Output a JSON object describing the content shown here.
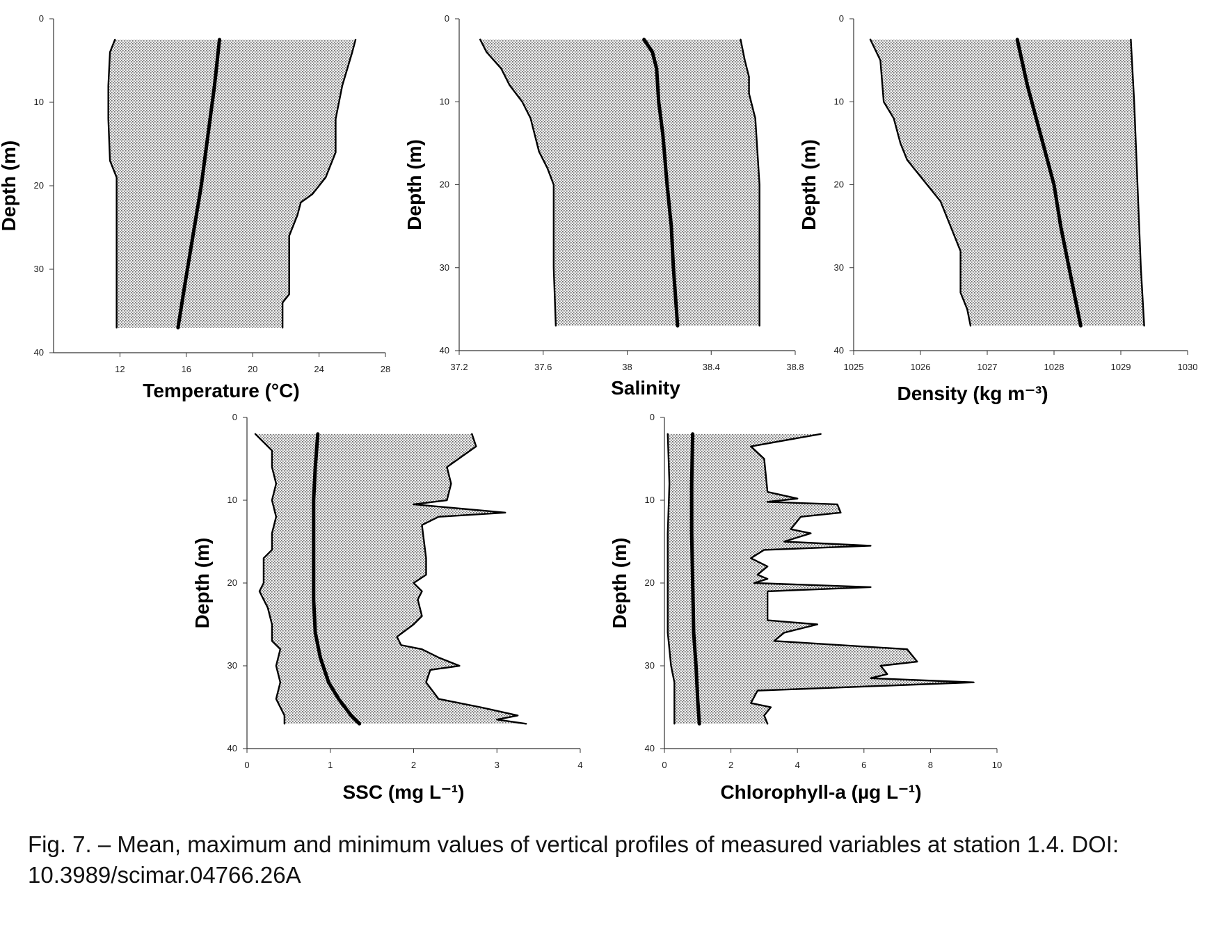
{
  "caption": "Fig. 7. – Mean, maximum and minimum values of vertical profiles of measured variables at station 1.4. DOI: 10.3989/scimar.04766.26A",
  "colors": {
    "fill": "#d4d4d4",
    "line": "#000000"
  },
  "chart_data": [
    {
      "type": "line",
      "title": "",
      "xlabel": "Temperature (°C)",
      "ylabel": "Depth (m)",
      "xlim": [
        8,
        28
      ],
      "ylim": [
        40,
        0
      ],
      "x_ticks": [
        "12",
        "16",
        "20",
        "24",
        "28"
      ],
      "y_ticks": [
        "0",
        "10",
        "20",
        "30",
        "40"
      ],
      "grid": false,
      "series": [
        {
          "role": "min",
          "points": [
            [
              11.7,
              2.5
            ],
            [
              11.4,
              4
            ],
            [
              11.3,
              8
            ],
            [
              11.3,
              12
            ],
            [
              11.4,
              17
            ],
            [
              11.8,
              19
            ],
            [
              11.8,
              25
            ],
            [
              11.8,
              30
            ],
            [
              11.8,
              37
            ]
          ]
        },
        {
          "role": "mean",
          "points": [
            [
              18.0,
              2.5
            ],
            [
              17.7,
              8
            ],
            [
              17.3,
              14
            ],
            [
              16.9,
              20
            ],
            [
              16.4,
              26
            ],
            [
              15.9,
              32
            ],
            [
              15.5,
              37
            ]
          ]
        },
        {
          "role": "max",
          "points": [
            [
              26.2,
              2.5
            ],
            [
              26.0,
              4
            ],
            [
              25.4,
              8
            ],
            [
              25.0,
              12
            ],
            [
              25.0,
              16
            ],
            [
              24.4,
              19
            ],
            [
              23.6,
              21
            ],
            [
              22.9,
              22
            ],
            [
              22.7,
              23.5
            ],
            [
              22.2,
              26
            ],
            [
              22.2,
              33
            ],
            [
              21.8,
              34
            ],
            [
              21.8,
              37
            ]
          ]
        }
      ]
    },
    {
      "type": "line",
      "title": "",
      "xlabel": "Salinity",
      "ylabel": "Depth (m)",
      "xlim": [
        37.2,
        38.8
      ],
      "ylim": [
        40,
        0
      ],
      "x_ticks": [
        "37.2",
        "37.6",
        "38",
        "38.4",
        "38.8"
      ],
      "y_ticks": [
        "0",
        "10",
        "20",
        "30",
        "40"
      ],
      "grid": false,
      "series": [
        {
          "role": "min",
          "points": [
            [
              37.3,
              2.5
            ],
            [
              37.33,
              4
            ],
            [
              37.4,
              6
            ],
            [
              37.44,
              8
            ],
            [
              37.5,
              10
            ],
            [
              37.54,
              12
            ],
            [
              37.56,
              14
            ],
            [
              37.58,
              16
            ],
            [
              37.62,
              18
            ],
            [
              37.65,
              20
            ],
            [
              37.65,
              30
            ],
            [
              37.66,
              37
            ]
          ]
        },
        {
          "role": "mean",
          "points": [
            [
              38.08,
              2.5
            ],
            [
              38.12,
              4
            ],
            [
              38.14,
              6
            ],
            [
              38.15,
              10
            ],
            [
              38.17,
              14
            ],
            [
              38.19,
              20
            ],
            [
              38.21,
              25
            ],
            [
              38.22,
              30
            ],
            [
              38.24,
              37
            ]
          ]
        },
        {
          "role": "max",
          "points": [
            [
              38.54,
              2.5
            ],
            [
              38.56,
              5
            ],
            [
              38.58,
              7
            ],
            [
              38.58,
              9
            ],
            [
              38.61,
              12
            ],
            [
              38.62,
              16
            ],
            [
              38.63,
              20
            ],
            [
              38.63,
              30
            ],
            [
              38.63,
              37
            ]
          ]
        }
      ]
    },
    {
      "type": "line",
      "title": "",
      "xlabel": "Density (kg m⁻³)",
      "ylabel": "Depth (m)",
      "xlim": [
        1025,
        1030
      ],
      "ylim": [
        40,
        0
      ],
      "x_ticks": [
        "1025",
        "1026",
        "1027",
        "1028",
        "1029",
        "1030"
      ],
      "y_ticks": [
        "0",
        "10",
        "20",
        "30",
        "40"
      ],
      "grid": false,
      "series": [
        {
          "role": "min",
          "points": [
            [
              1025.25,
              2.5
            ],
            [
              1025.4,
              5
            ],
            [
              1025.45,
              10
            ],
            [
              1025.6,
              12
            ],
            [
              1025.7,
              15
            ],
            [
              1025.8,
              17
            ],
            [
              1026.0,
              19
            ],
            [
              1026.3,
              22
            ],
            [
              1026.5,
              26
            ],
            [
              1026.6,
              28
            ],
            [
              1026.6,
              33
            ],
            [
              1026.7,
              35
            ],
            [
              1026.75,
              37
            ]
          ]
        },
        {
          "role": "mean",
          "points": [
            [
              1027.45,
              2.5
            ],
            [
              1027.6,
              8
            ],
            [
              1027.8,
              14
            ],
            [
              1028.0,
              20
            ],
            [
              1028.1,
              25
            ],
            [
              1028.25,
              31
            ],
            [
              1028.4,
              37
            ]
          ]
        },
        {
          "role": "max",
          "points": [
            [
              1029.15,
              2.5
            ],
            [
              1029.2,
              10
            ],
            [
              1029.25,
              20
            ],
            [
              1029.3,
              30
            ],
            [
              1029.35,
              37
            ]
          ]
        }
      ]
    },
    {
      "type": "line",
      "title": "",
      "xlabel": "SSC (mg L⁻¹)",
      "ylabel": "Depth (m)",
      "xlim": [
        0,
        4
      ],
      "ylim": [
        40,
        0
      ],
      "x_ticks": [
        "0",
        "1",
        "2",
        "3",
        "4"
      ],
      "y_ticks": [
        "0",
        "10",
        "20",
        "30",
        "40"
      ],
      "grid": false,
      "series": [
        {
          "role": "min",
          "points": [
            [
              0.1,
              2
            ],
            [
              0.2,
              3
            ],
            [
              0.3,
              4
            ],
            [
              0.3,
              6
            ],
            [
              0.35,
              8
            ],
            [
              0.3,
              10
            ],
            [
              0.35,
              12
            ],
            [
              0.3,
              14
            ],
            [
              0.3,
              16
            ],
            [
              0.2,
              17
            ],
            [
              0.2,
              20
            ],
            [
              0.15,
              21
            ],
            [
              0.25,
              23
            ],
            [
              0.3,
              25
            ],
            [
              0.3,
              27
            ],
            [
              0.4,
              28
            ],
            [
              0.35,
              30
            ],
            [
              0.4,
              32
            ],
            [
              0.35,
              34
            ],
            [
              0.45,
              36
            ],
            [
              0.45,
              37
            ]
          ]
        },
        {
          "role": "mean",
          "points": [
            [
              0.85,
              2
            ],
            [
              0.82,
              6
            ],
            [
              0.8,
              10
            ],
            [
              0.8,
              16
            ],
            [
              0.8,
              22
            ],
            [
              0.82,
              26
            ],
            [
              0.88,
              29
            ],
            [
              0.98,
              32
            ],
            [
              1.1,
              34
            ],
            [
              1.25,
              36
            ],
            [
              1.35,
              37
            ]
          ]
        },
        {
          "role": "max",
          "points": [
            [
              2.7,
              2
            ],
            [
              2.75,
              3.5
            ],
            [
              2.4,
              6
            ],
            [
              2.45,
              8
            ],
            [
              2.4,
              10
            ],
            [
              2.0,
              10.5
            ],
            [
              3.1,
              11.5
            ],
            [
              2.3,
              12
            ],
            [
              2.1,
              13
            ],
            [
              2.15,
              17
            ],
            [
              2.15,
              19
            ],
            [
              2.0,
              20
            ],
            [
              2.1,
              21
            ],
            [
              2.05,
              22
            ],
            [
              2.1,
              24
            ],
            [
              2.0,
              25
            ],
            [
              1.8,
              26.5
            ],
            [
              1.85,
              27.5
            ],
            [
              2.1,
              28
            ],
            [
              2.3,
              29
            ],
            [
              2.55,
              30
            ],
            [
              2.2,
              30.5
            ],
            [
              2.15,
              32
            ],
            [
              2.3,
              34
            ],
            [
              2.8,
              35
            ],
            [
              3.25,
              36
            ],
            [
              3.0,
              36.5
            ],
            [
              3.35,
              37
            ]
          ]
        }
      ]
    },
    {
      "type": "line",
      "title": "",
      "xlabel": "Chlorophyll-a (µg L⁻¹)",
      "ylabel": "Depth (m)",
      "xlim": [
        0,
        10
      ],
      "ylim": [
        40,
        0
      ],
      "x_ticks": [
        "0",
        "2",
        "4",
        "6",
        "8",
        "10"
      ],
      "y_ticks": [
        "0",
        "10",
        "20",
        "30",
        "40"
      ],
      "grid": false,
      "series": [
        {
          "role": "min",
          "points": [
            [
              0.1,
              2
            ],
            [
              0.15,
              8
            ],
            [
              0.1,
              14
            ],
            [
              0.1,
              20
            ],
            [
              0.1,
              26
            ],
            [
              0.2,
              30
            ],
            [
              0.3,
              32
            ],
            [
              0.3,
              35
            ],
            [
              0.3,
              37
            ]
          ]
        },
        {
          "role": "mean",
          "points": [
            [
              0.85,
              2
            ],
            [
              0.82,
              8
            ],
            [
              0.82,
              14
            ],
            [
              0.85,
              20
            ],
            [
              0.88,
              26
            ],
            [
              0.95,
              30
            ],
            [
              1.0,
              34
            ],
            [
              1.05,
              37
            ]
          ]
        },
        {
          "role": "max",
          "points": [
            [
              4.7,
              2
            ],
            [
              2.6,
              3.5
            ],
            [
              3.0,
              5
            ],
            [
              3.1,
              9
            ],
            [
              4.0,
              9.8
            ],
            [
              3.1,
              10.2
            ],
            [
              5.2,
              10.5
            ],
            [
              5.3,
              11.5
            ],
            [
              4.1,
              12
            ],
            [
              3.8,
              13.5
            ],
            [
              4.4,
              14
            ],
            [
              3.6,
              15
            ],
            [
              6.2,
              15.5
            ],
            [
              3.0,
              16
            ],
            [
              2.6,
              17
            ],
            [
              3.1,
              18
            ],
            [
              2.8,
              19
            ],
            [
              3.1,
              19.5
            ],
            [
              2.7,
              20
            ],
            [
              6.2,
              20.5
            ],
            [
              3.1,
              21
            ],
            [
              3.1,
              23
            ],
            [
              3.1,
              24.5
            ],
            [
              4.6,
              25
            ],
            [
              3.6,
              26
            ],
            [
              3.3,
              27
            ],
            [
              7.3,
              28
            ],
            [
              7.6,
              29.5
            ],
            [
              6.5,
              30
            ],
            [
              6.7,
              31
            ],
            [
              6.2,
              31.5
            ],
            [
              9.3,
              32
            ],
            [
              2.8,
              33
            ],
            [
              2.6,
              34.5
            ],
            [
              3.2,
              35
            ],
            [
              3.0,
              36
            ],
            [
              3.1,
              37
            ]
          ]
        }
      ]
    }
  ]
}
